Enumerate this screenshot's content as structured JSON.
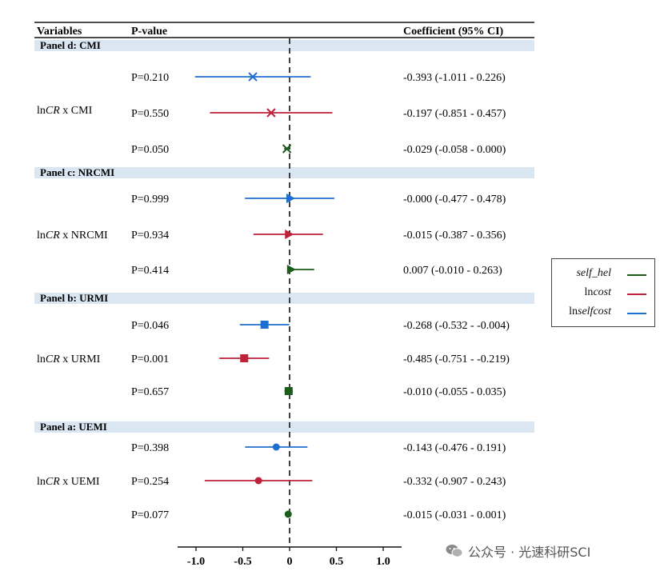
{
  "header": {
    "variables": "Variables",
    "pvalue": "P-value",
    "coef": "Coefficient (95% CI)"
  },
  "chart_data": {
    "type": "forest",
    "x": {
      "min": -1.0,
      "max": 1.0,
      "ticks": [
        "-1.0",
        "-0.5",
        "0",
        "0.5",
        "1.0"
      ],
      "reference_line": 0
    },
    "legend": [
      {
        "label": "self_hel",
        "color": "#1a5c1a"
      },
      {
        "label": "lncost",
        "color": "#c0213a"
      },
      {
        "label": "lnselfcost",
        "color": "#1f6fd0"
      }
    ],
    "panels": [
      {
        "title": "Panel d: CMI",
        "variable": "lnCR x CMI",
        "marker": "x",
        "rows": [
          {
            "series": "lnselfcost",
            "p": "P=0.210",
            "coef": -0.393,
            "lo": -1.011,
            "hi": 0.226,
            "ci_text": "-0.393 (-1.011 - 0.226)"
          },
          {
            "series": "lncost",
            "p": "P=0.550",
            "coef": -0.197,
            "lo": -0.851,
            "hi": 0.457,
            "ci_text": "-0.197 (-0.851 - 0.457)"
          },
          {
            "series": "self_hel",
            "p": "P=0.050",
            "coef": -0.029,
            "lo": -0.058,
            "hi": 0.0,
            "ci_text": "-0.029 (-0.058 - 0.000)"
          }
        ]
      },
      {
        "title": "Panel c: NRCMI",
        "variable": "lnCR x NRCMI",
        "marker": "triangle",
        "rows": [
          {
            "series": "lnselfcost",
            "p": "P=0.999",
            "coef": 0.0,
            "lo": -0.477,
            "hi": 0.478,
            "ci_text": "-0.000 (-0.477 - 0.478)"
          },
          {
            "series": "lncost",
            "p": "P=0.934",
            "coef": -0.015,
            "lo": -0.387,
            "hi": 0.356,
            "ci_text": "-0.015 (-0.387 - 0.356)"
          },
          {
            "series": "self_hel",
            "p": "P=0.414",
            "coef": 0.007,
            "lo": -0.01,
            "hi": 0.263,
            "ci_text": "0.007 (-0.010 - 0.263)"
          }
        ]
      },
      {
        "title": "Panel b: URMI",
        "variable": "lnCR x URMI",
        "marker": "square",
        "rows": [
          {
            "series": "lnselfcost",
            "p": "P=0.046",
            "coef": -0.268,
            "lo": -0.532,
            "hi": -0.004,
            "ci_text": "-0.268 (-0.532 - -0.004)"
          },
          {
            "series": "lncost",
            "p": "P=0.001",
            "coef": -0.485,
            "lo": -0.751,
            "hi": -0.219,
            "ci_text": "-0.485 (-0.751 - -0.219)"
          },
          {
            "series": "self_hel",
            "p": "P=0.657",
            "coef": -0.01,
            "lo": -0.055,
            "hi": 0.035,
            "ci_text": "-0.010 (-0.055 -  0.035)"
          }
        ]
      },
      {
        "title": "Panel a:  UEMI",
        "variable": "lnCR x UEMI",
        "marker": "circle",
        "rows": [
          {
            "series": "lnselfcost",
            "p": "P=0.398",
            "coef": -0.143,
            "lo": -0.476,
            "hi": 0.191,
            "ci_text": "-0.143 (-0.476 - 0.191)"
          },
          {
            "series": "lncost",
            "p": "P=0.254",
            "coef": -0.332,
            "lo": -0.907,
            "hi": 0.243,
            "ci_text": "-0.332 (-0.907 - 0.243)"
          },
          {
            "series": "self_hel",
            "p": "P=0.077",
            "coef": -0.015,
            "lo": -0.031,
            "hi": 0.001,
            "ci_text": "-0.015 (-0.031 - 0.001)"
          }
        ]
      }
    ]
  },
  "watermark": {
    "text": "公众号 · 光速科研SCI"
  }
}
